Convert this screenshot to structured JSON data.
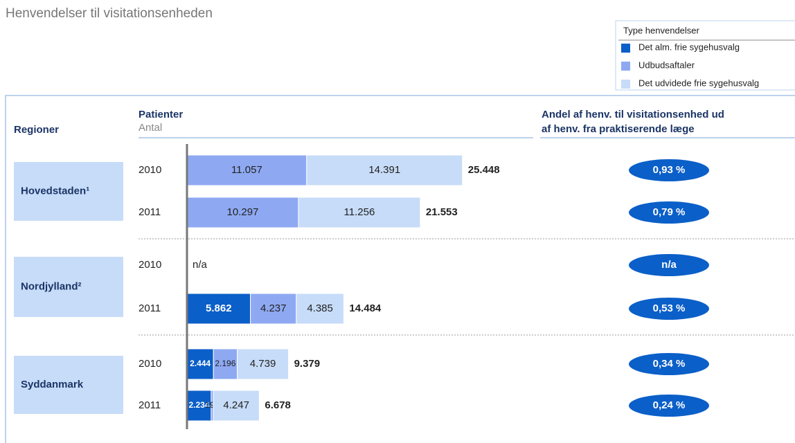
{
  "chart_data": {
    "type": "bar",
    "orientation": "horizontal",
    "stacked": true,
    "title": "Henvendelser til visitationsenheden",
    "legend_title": "Type henvendelser",
    "group_header": "Regioner",
    "bar_header": "Patienter",
    "bar_subheader": "Antal",
    "share_header": [
      "Andel af henv. til visitationsenhed ud",
      "af henv. fra praktiserende læge"
    ],
    "groups": [
      {
        "name": "Hovedstaden¹",
        "rows": [
          0,
          1
        ]
      },
      {
        "name": "Nordjylland²",
        "rows": [
          2,
          3
        ]
      },
      {
        "name": "Syddanmark",
        "rows": [
          4,
          5
        ]
      }
    ],
    "categories": [
      "2010",
      "2011",
      "2010",
      "2011",
      "2010",
      "2011"
    ],
    "xlim": [
      0,
      27000
    ],
    "series": [
      {
        "name": "Det alm. frie sygehusvalg",
        "color": "#0b5fc8",
        "values": [
          null,
          null,
          null,
          5862,
          2444,
          2234
        ],
        "value_labels": [
          null,
          null,
          null,
          "5.862",
          "2.444",
          "2.234"
        ]
      },
      {
        "name": "Udbudsaftaler",
        "color": "#8ea9f2",
        "values": [
          11057,
          10297,
          null,
          4237,
          2196,
          197
        ],
        "value_labels": [
          "11.057",
          "10.297",
          null,
          "4.237",
          "2.196",
          "197"
        ]
      },
      {
        "name": "Det udvidede frie sygehusvalg",
        "color": "#c7dcf8",
        "values": [
          14391,
          11256,
          null,
          4385,
          4739,
          4247
        ],
        "value_labels": [
          "14.391",
          "11.256",
          null,
          "4.385",
          "4.739",
          "4.247"
        ]
      }
    ],
    "totals": {
      "values": [
        25448,
        21553,
        null,
        14484,
        9379,
        6678
      ],
      "value_labels": [
        "25.448",
        "21.553",
        "n/a",
        "14.484",
        "9.379",
        "6.678"
      ]
    },
    "shares": {
      "color": "#0b5fc8",
      "values": [
        0.93,
        0.79,
        null,
        0.53,
        0.34,
        0.24
      ],
      "value_labels": [
        "0,93 %",
        "0,79 %",
        "n/a",
        "0,53 %",
        "0,34 %",
        "0,24 %"
      ]
    }
  }
}
